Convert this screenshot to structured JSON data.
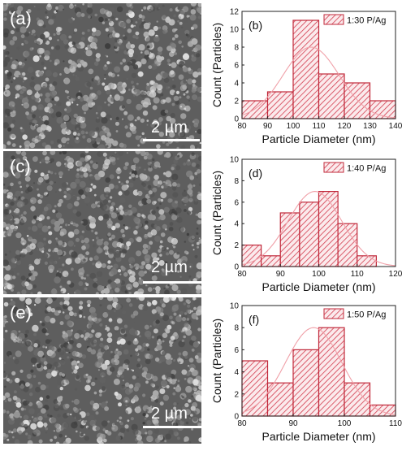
{
  "sem_panels": [
    {
      "label": "(a)",
      "scale_label": "2 µm"
    },
    {
      "label": "(c)",
      "scale_label": "2 µm"
    },
    {
      "label": "(e)",
      "scale_label": "2 µm"
    }
  ],
  "colors": {
    "bar_edge": "#c0283a",
    "hatch": "#d23a4c",
    "fit_curve": "#f0a0a8",
    "text": "#111111"
  },
  "chart_data": [
    {
      "type": "bar",
      "panel_label": "(b)",
      "legend": "1:30 P/Ag",
      "xlabel": "Particle Diameter (nm)",
      "ylabel": "Count (Particles)",
      "xlim": [
        80,
        140
      ],
      "ylim": [
        0,
        12
      ],
      "xticks": [
        80,
        90,
        100,
        110,
        120,
        130,
        140
      ],
      "yticks": [
        0,
        2,
        4,
        6,
        8,
        10,
        12
      ],
      "bin_width": 10,
      "bins": [
        80,
        90,
        100,
        110,
        120,
        130
      ],
      "values": [
        2,
        3,
        11,
        5,
        4,
        2
      ],
      "fit": {
        "mean": 107,
        "sd": 11,
        "peak": 8
      }
    },
    {
      "type": "bar",
      "panel_label": "(d)",
      "legend": "1:40 P/Ag",
      "xlabel": "Particle Diameter (nm)",
      "ylabel": "Count (Particles)",
      "xlim": [
        80,
        120
      ],
      "ylim": [
        0,
        10
      ],
      "xticks": [
        80,
        90,
        100,
        110,
        120
      ],
      "yticks": [
        0,
        2,
        4,
        6,
        8,
        10
      ],
      "bin_width": 5,
      "bins": [
        80,
        85,
        90,
        95,
        100,
        105,
        110
      ],
      "values": [
        2,
        1,
        5,
        6,
        7,
        4,
        1
      ],
      "fit": {
        "mean": 99,
        "sd": 7,
        "peak": 7
      }
    },
    {
      "type": "bar",
      "panel_label": "(f)",
      "legend": "1:50 P/Ag",
      "xlabel": "Particle Diameter (nm)",
      "ylabel": "Count (Particles)",
      "xlim": [
        80,
        110
      ],
      "ylim": [
        0,
        10
      ],
      "xticks": [
        80,
        90,
        100,
        110
      ],
      "yticks": [
        0,
        2,
        4,
        6,
        8,
        10
      ],
      "bin_width": 5,
      "bins": [
        80,
        85,
        90,
        95,
        100,
        105
      ],
      "values": [
        5,
        3,
        6,
        8,
        3,
        1
      ],
      "fit": {
        "mean": 94,
        "sd": 5.5,
        "peak": 8
      }
    }
  ]
}
